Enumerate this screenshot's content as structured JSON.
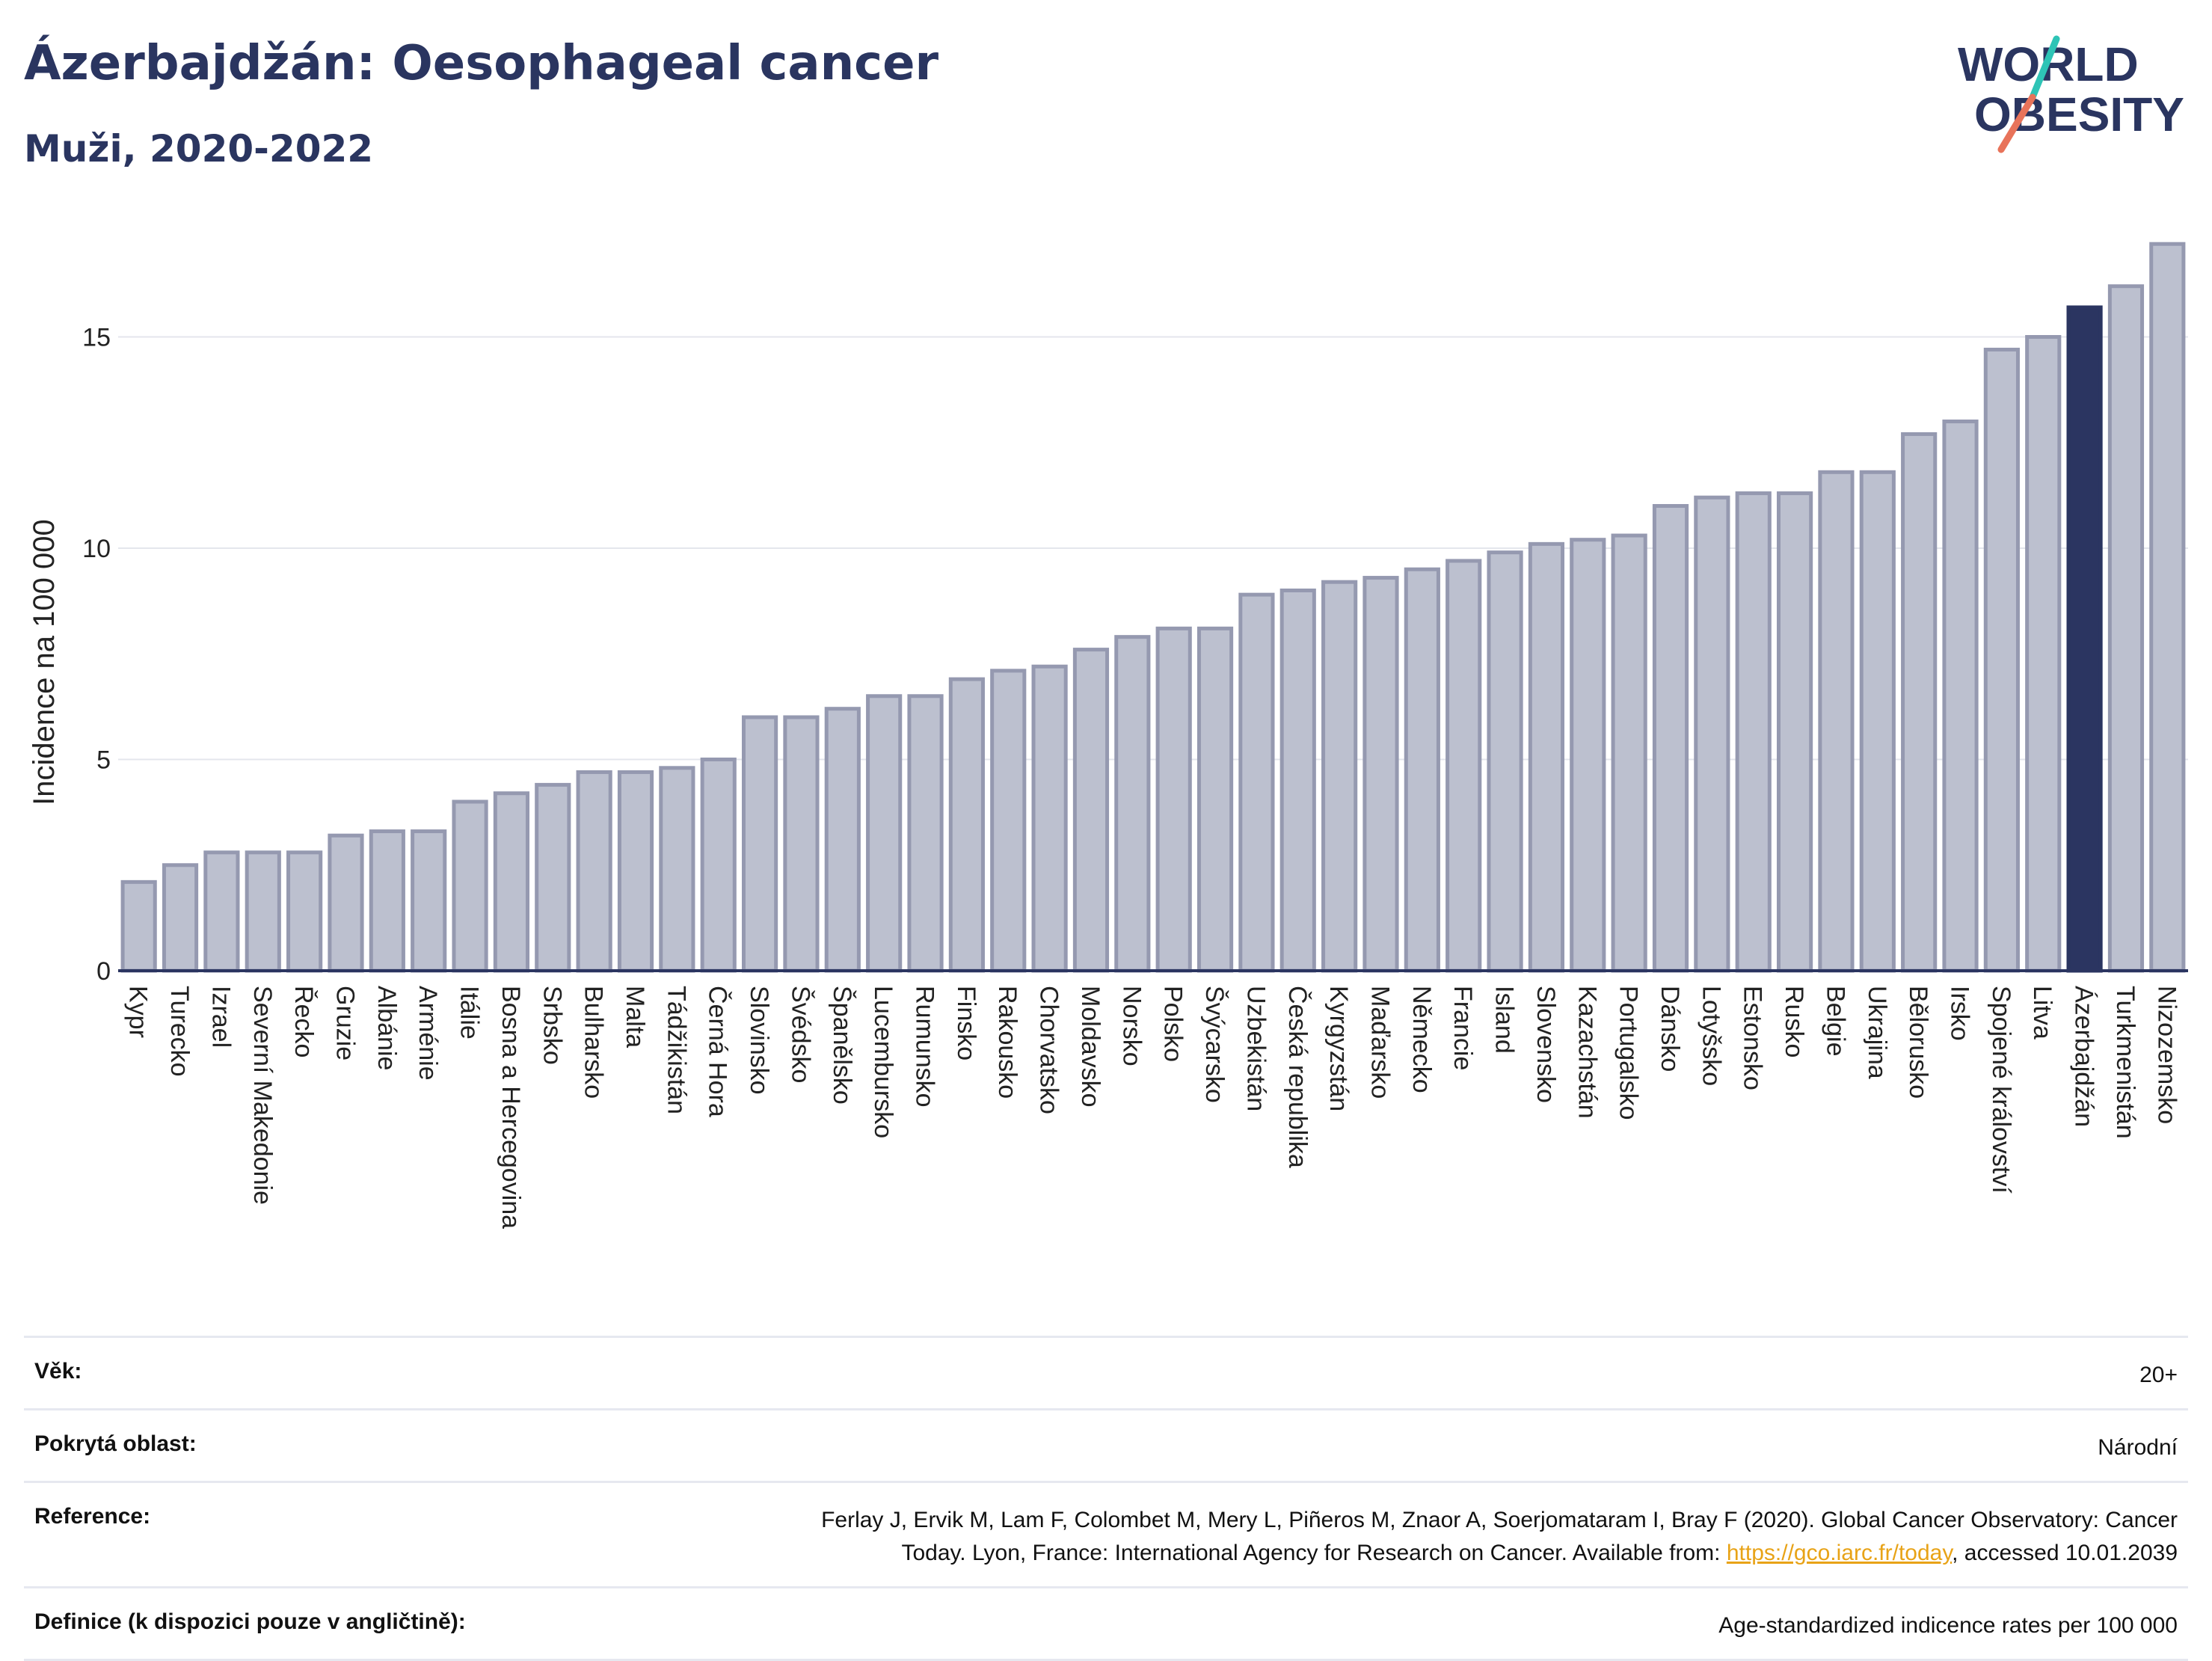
{
  "header": {
    "title": "Ázerbajdžán: Oesophageal cancer",
    "subtitle": "Muži, 2020-2022"
  },
  "logo": {
    "line1": "WORLD",
    "line2": "OBESITY"
  },
  "colors": {
    "bar": "#bcc0cf",
    "bar_stroke": "#9599b0",
    "highlight": "#2b3561",
    "grid": "#e4e6ec",
    "text": "#2a3560"
  },
  "chart_data": {
    "type": "bar",
    "ylabel": "Incidence na 100 000",
    "ylim": [
      0,
      18
    ],
    "yticks": [
      0,
      5,
      10,
      15
    ],
    "grid": true,
    "highlight": "Ázerbajdžán",
    "categories": [
      "Kypr",
      "Turecko",
      "Izrael",
      "Severní Makedonie",
      "Řecko",
      "Gruzie",
      "Albánie",
      "Arménie",
      "Itálie",
      "Bosna a Hercegovina",
      "Srbsko",
      "Bulharsko",
      "Malta",
      "Tádžikistán",
      "Černá Hora",
      "Slovinsko",
      "Švédsko",
      "Španělsko",
      "Lucembursko",
      "Rumunsko",
      "Finsko",
      "Rakousko",
      "Chorvatsko",
      "Moldavsko",
      "Norsko",
      "Polsko",
      "Švýcarsko",
      "Uzbekistán",
      "Česká republika",
      "Kyrgyzstán",
      "Maďarsko",
      "Německo",
      "Francie",
      "Island",
      "Slovensko",
      "Kazachstán",
      "Portugalsko",
      "Dánsko",
      "Lotyšsko",
      "Estonsko",
      "Rusko",
      "Belgie",
      "Ukrajina",
      "Bělorusko",
      "Irsko",
      "Spojené království",
      "Litva",
      "Ázerbajdžán",
      "Turkmenistán",
      "Nizozemsko"
    ],
    "values": [
      2.1,
      2.5,
      2.8,
      2.8,
      2.8,
      3.2,
      3.3,
      3.3,
      4.0,
      4.2,
      4.4,
      4.7,
      4.7,
      4.8,
      5.0,
      6.0,
      6.0,
      6.2,
      6.5,
      6.5,
      6.9,
      7.1,
      7.2,
      7.6,
      7.9,
      8.1,
      8.1,
      8.9,
      9.0,
      9.2,
      9.3,
      9.5,
      9.7,
      9.9,
      10.1,
      10.2,
      10.3,
      11.0,
      11.2,
      11.3,
      11.3,
      11.8,
      11.8,
      12.7,
      13.0,
      14.7,
      15.0,
      15.7,
      16.2,
      17.2
    ]
  },
  "info": {
    "age_label": "Věk:",
    "age_value": "20+",
    "coverage_label": "Pokrytá oblast:",
    "coverage_value": "Národní",
    "reference_label": "Reference:",
    "reference_text_1": "Ferlay J, Ervik M, Lam F, Colombet M, Mery L, Piñeros M, Znaor A, Soerjomataram I, Bray F (2020). Global Cancer Observatory: Cancer",
    "reference_text_2": "Today. Lyon, France: International Agency for Research on Cancer. Available from: ",
    "reference_link": "https://gco.iarc.fr/today",
    "reference_text_3": ", accessed 10.01.2039",
    "definition_label": "Definice (k dispozici pouze v angličtině):",
    "definition_value": "Age-standardized indicence rates per 100 000"
  }
}
